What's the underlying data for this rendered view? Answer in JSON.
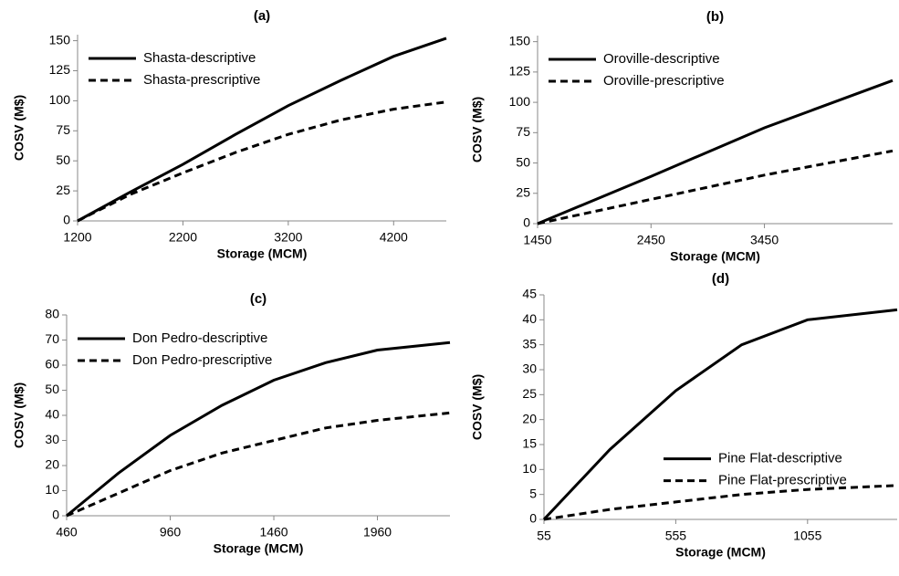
{
  "chart_data": [
    {
      "type": "line",
      "title": "(a)",
      "x_label": "Storage (MCM)",
      "y_label": "COSV (M$)",
      "x": [
        1200,
        1700,
        2200,
        2700,
        3200,
        3700,
        4200,
        4700
      ],
      "series": [
        {
          "name": "Shasta-descriptive",
          "color": "#000000",
          "style": "solid",
          "values": [
            0,
            24,
            47,
            72,
            96,
            117,
            137,
            152
          ]
        },
        {
          "name": "Shasta-prescriptive",
          "color": "#000000",
          "style": "dashed",
          "values": [
            0,
            22,
            40,
            57,
            72,
            84,
            93,
            99
          ]
        }
      ],
      "xlim": [
        1200,
        4700
      ],
      "xticks": [
        1200,
        2200,
        3200,
        4200
      ],
      "ylim": [
        0,
        155
      ],
      "yticks": [
        0,
        25,
        50,
        75,
        100,
        125,
        150
      ],
      "grid": false,
      "legend": "upper left"
    },
    {
      "type": "line",
      "title": "(b)",
      "x_label": "Storage (MCM)",
      "y_label": "COSV (M$)",
      "x": [
        1450,
        2450,
        3450,
        4580
      ],
      "series": [
        {
          "name": "Oroville-descriptive",
          "color": "#000000",
          "style": "solid",
          "values": [
            0,
            39,
            79,
            118
          ]
        },
        {
          "name": "Oroville-prescriptive",
          "color": "#000000",
          "style": "dashed",
          "values": [
            0,
            20,
            40,
            60
          ]
        }
      ],
      "xlim": [
        1450,
        4580
      ],
      "xticks": [
        1450,
        2450,
        3450
      ],
      "ylim": [
        0,
        155
      ],
      "yticks": [
        0,
        25,
        50,
        75,
        100,
        125,
        150
      ],
      "grid": false,
      "legend": "upper left"
    },
    {
      "type": "line",
      "title": "(c)",
      "x_label": "Storage (MCM)",
      "y_label": "COSV (M$)",
      "x": [
        460,
        710,
        960,
        1210,
        1460,
        1710,
        1960,
        2310
      ],
      "series": [
        {
          "name": "Don Pedro-descriptive",
          "color": "#000000",
          "style": "solid",
          "values": [
            0,
            17,
            32,
            44,
            54,
            61,
            66,
            69
          ]
        },
        {
          "name": "Don Pedro-prescriptive",
          "color": "#000000",
          "style": "dashed",
          "values": [
            0,
            9,
            18,
            25,
            30,
            35,
            38,
            41
          ]
        }
      ],
      "xlim": [
        460,
        2310
      ],
      "xticks": [
        460,
        960,
        1460,
        1960
      ],
      "ylim": [
        0,
        80
      ],
      "yticks": [
        0,
        10,
        20,
        30,
        40,
        50,
        60,
        70,
        80
      ],
      "grid": false,
      "legend": "upper left"
    },
    {
      "type": "line",
      "title": "(d)",
      "x_label": "Storage (MCM)",
      "y_label": "COSV (M$)",
      "x": [
        55,
        305,
        555,
        805,
        1055,
        1395
      ],
      "series": [
        {
          "name": "Pine Flat-descriptive",
          "color": "#000000",
          "style": "solid",
          "values": [
            0,
            14,
            25.8,
            35,
            40,
            42
          ]
        },
        {
          "name": "Pine Flat-prescriptive",
          "color": "#000000",
          "style": "dashed",
          "values": [
            0,
            2,
            3.5,
            5,
            6,
            6.8
          ]
        }
      ],
      "xlim": [
        55,
        1395
      ],
      "xticks": [
        55,
        555,
        1055
      ],
      "ylim": [
        0,
        45
      ],
      "yticks": [
        0,
        5,
        10,
        15,
        20,
        25,
        30,
        35,
        40,
        45
      ],
      "grid": false,
      "legend": "center right"
    }
  ]
}
